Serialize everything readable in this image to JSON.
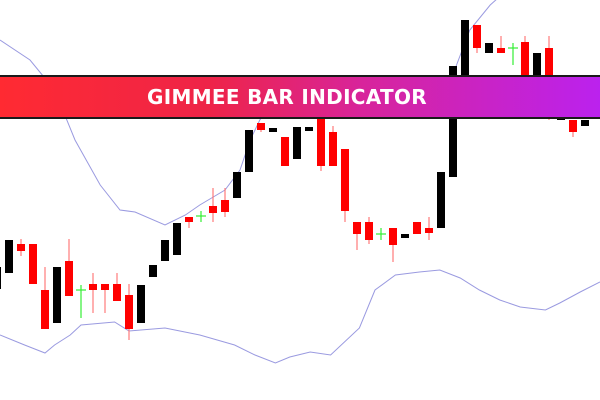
{
  "banner": {
    "title": "GIMMEE BAR INDICATOR"
  },
  "colors": {
    "bearish": "#ff0000",
    "bearish_wick": "#ff7a7a",
    "bullish": "#000000",
    "doji": "#33ee33",
    "band": "#9a9ae0"
  },
  "chart_data": {
    "type": "candlestick",
    "title": "",
    "grid": false,
    "candles": [
      {
        "o": 111,
        "h": 133,
        "l": 111,
        "c": 133
      },
      {
        "o": 127,
        "h": 160,
        "l": 127,
        "c": 160
      },
      {
        "o": 156,
        "h": 161,
        "l": 144,
        "c": 149
      },
      {
        "o": 156,
        "h": 156,
        "l": 116,
        "c": 116
      },
      {
        "o": 110,
        "h": 133,
        "l": 71,
        "c": 71
      },
      {
        "o": 77,
        "h": 133,
        "l": 77,
        "c": 133
      },
      {
        "o": 139,
        "h": 161,
        "l": 104,
        "c": 104
      },
      {
        "o": 110,
        "h": 115,
        "l": 82,
        "c": 110
      },
      {
        "o": 116,
        "h": 127,
        "l": 87,
        "c": 110
      },
      {
        "o": 116,
        "h": 116,
        "l": 87,
        "c": 110
      },
      {
        "o": 116,
        "h": 127,
        "l": 99,
        "c": 99
      },
      {
        "o": 105,
        "h": 116,
        "l": 60,
        "c": 71
      },
      {
        "o": 77,
        "h": 115,
        "l": 77,
        "c": 115
      },
      {
        "o": 123,
        "h": 135,
        "l": 123,
        "c": 135
      },
      {
        "o": 139,
        "h": 160,
        "l": 139,
        "c": 160
      },
      {
        "o": 145,
        "h": 177,
        "l": 145,
        "c": 177
      },
      {
        "o": 183,
        "h": 183,
        "l": 172,
        "c": 178
      },
      {
        "o": 184,
        "h": 189,
        "l": 178,
        "c": 184
      },
      {
        "o": 194,
        "h": 212,
        "l": 178,
        "c": 187
      },
      {
        "o": 200,
        "h": 212,
        "l": 183,
        "c": 188
      },
      {
        "o": 202,
        "h": 228,
        "l": 202,
        "c": 228
      },
      {
        "o": 228,
        "h": 270,
        "l": 228,
        "c": 270
      },
      {
        "o": 277,
        "h": 277,
        "l": 268,
        "c": 270
      },
      {
        "o": 268,
        "h": 272,
        "l": 268,
        "c": 272
      },
      {
        "o": 263,
        "h": 263,
        "l": 234,
        "c": 234
      },
      {
        "o": 241,
        "h": 273,
        "l": 241,
        "c": 273
      },
      {
        "o": 269,
        "h": 273,
        "l": 269,
        "c": 273
      },
      {
        "o": 282,
        "h": 282,
        "l": 229,
        "c": 234
      },
      {
        "o": 268,
        "h": 274,
        "l": 234,
        "c": 234
      },
      {
        "o": 251,
        "h": 251,
        "l": 178,
        "c": 189
      },
      {
        "o": 178,
        "h": 178,
        "l": 150,
        "c": 166
      },
      {
        "o": 178,
        "h": 183,
        "l": 156,
        "c": 160
      },
      {
        "o": 166,
        "h": 172,
        "l": 160,
        "c": 166
      },
      {
        "o": 172,
        "h": 172,
        "l": 138,
        "c": 155
      },
      {
        "o": 162,
        "h": 166,
        "l": 162,
        "c": 166
      },
      {
        "o": 178,
        "h": 178,
        "l": 166,
        "c": 166
      },
      {
        "o": 172,
        "h": 183,
        "l": 160,
        "c": 167
      },
      {
        "o": 172,
        "h": 228,
        "l": 172,
        "c": 228
      },
      {
        "o": 223,
        "h": 334,
        "l": 223,
        "c": 334
      },
      {
        "o": 325,
        "h": 380,
        "l": 325,
        "c": 380
      },
      {
        "o": 375,
        "h": 375,
        "l": 347,
        "c": 352
      },
      {
        "o": 347,
        "h": 357,
        "l": 347,
        "c": 357
      },
      {
        "o": 352,
        "h": 364,
        "l": 347,
        "c": 347
      },
      {
        "o": 352,
        "h": 357,
        "l": 335,
        "c": 352
      },
      {
        "o": 358,
        "h": 364,
        "l": 295,
        "c": 300
      },
      {
        "o": 300,
        "h": 347,
        "l": 300,
        "c": 347
      },
      {
        "o": 352,
        "h": 364,
        "l": 280,
        "c": 285
      },
      {
        "o": 280,
        "h": 300,
        "l": 280,
        "c": 300
      },
      {
        "o": 280,
        "h": 280,
        "l": 263,
        "c": 268
      },
      {
        "o": 274,
        "h": 280,
        "l": 274,
        "c": 280
      }
    ],
    "upper_band": [
      [
        0.25,
        360
      ],
      [
        2.75,
        340
      ],
      [
        4.8,
        310
      ],
      [
        6.5,
        260
      ],
      [
        8.6,
        215
      ],
      [
        10.25,
        190
      ],
      [
        11.5,
        188
      ],
      [
        14,
        175
      ],
      [
        15.7,
        185
      ],
      [
        16.9,
        195
      ],
      [
        19,
        210
      ],
      [
        20.25,
        230
      ],
      [
        21.1,
        260
      ],
      [
        21.9,
        280
      ],
      [
        23.6,
        310
      ],
      [
        25.25,
        300
      ],
      [
        29.4,
        285
      ],
      [
        33.6,
        288
      ],
      [
        36.9,
        305
      ],
      [
        38.2,
        332
      ],
      [
        39.4,
        370
      ],
      [
        41.1,
        395
      ],
      [
        42.5,
        410
      ]
    ],
    "lower_band": [
      [
        0.25,
        65
      ],
      [
        2.3,
        55
      ],
      [
        4,
        47
      ],
      [
        4.8,
        55
      ],
      [
        6.1,
        65
      ],
      [
        7,
        75
      ],
      [
        9.8,
        78
      ],
      [
        11,
        69
      ],
      [
        14,
        72
      ],
      [
        16.9,
        65
      ],
      [
        19.8,
        55
      ],
      [
        21.5,
        45
      ],
      [
        23.2,
        37
      ],
      [
        24.4,
        43
      ],
      [
        26.1,
        48
      ],
      [
        27.8,
        45
      ],
      [
        30.2,
        72
      ],
      [
        31.5,
        110
      ],
      [
        33.2,
        125
      ],
      [
        35.2,
        128
      ],
      [
        36.9,
        130
      ],
      [
        38.6,
        122
      ],
      [
        40.2,
        110
      ],
      [
        41.9,
        100
      ],
      [
        43.6,
        93
      ],
      [
        45.7,
        90
      ],
      [
        46.9,
        97
      ],
      [
        48.6,
        108
      ],
      [
        50.25,
        118
      ]
    ]
  }
}
